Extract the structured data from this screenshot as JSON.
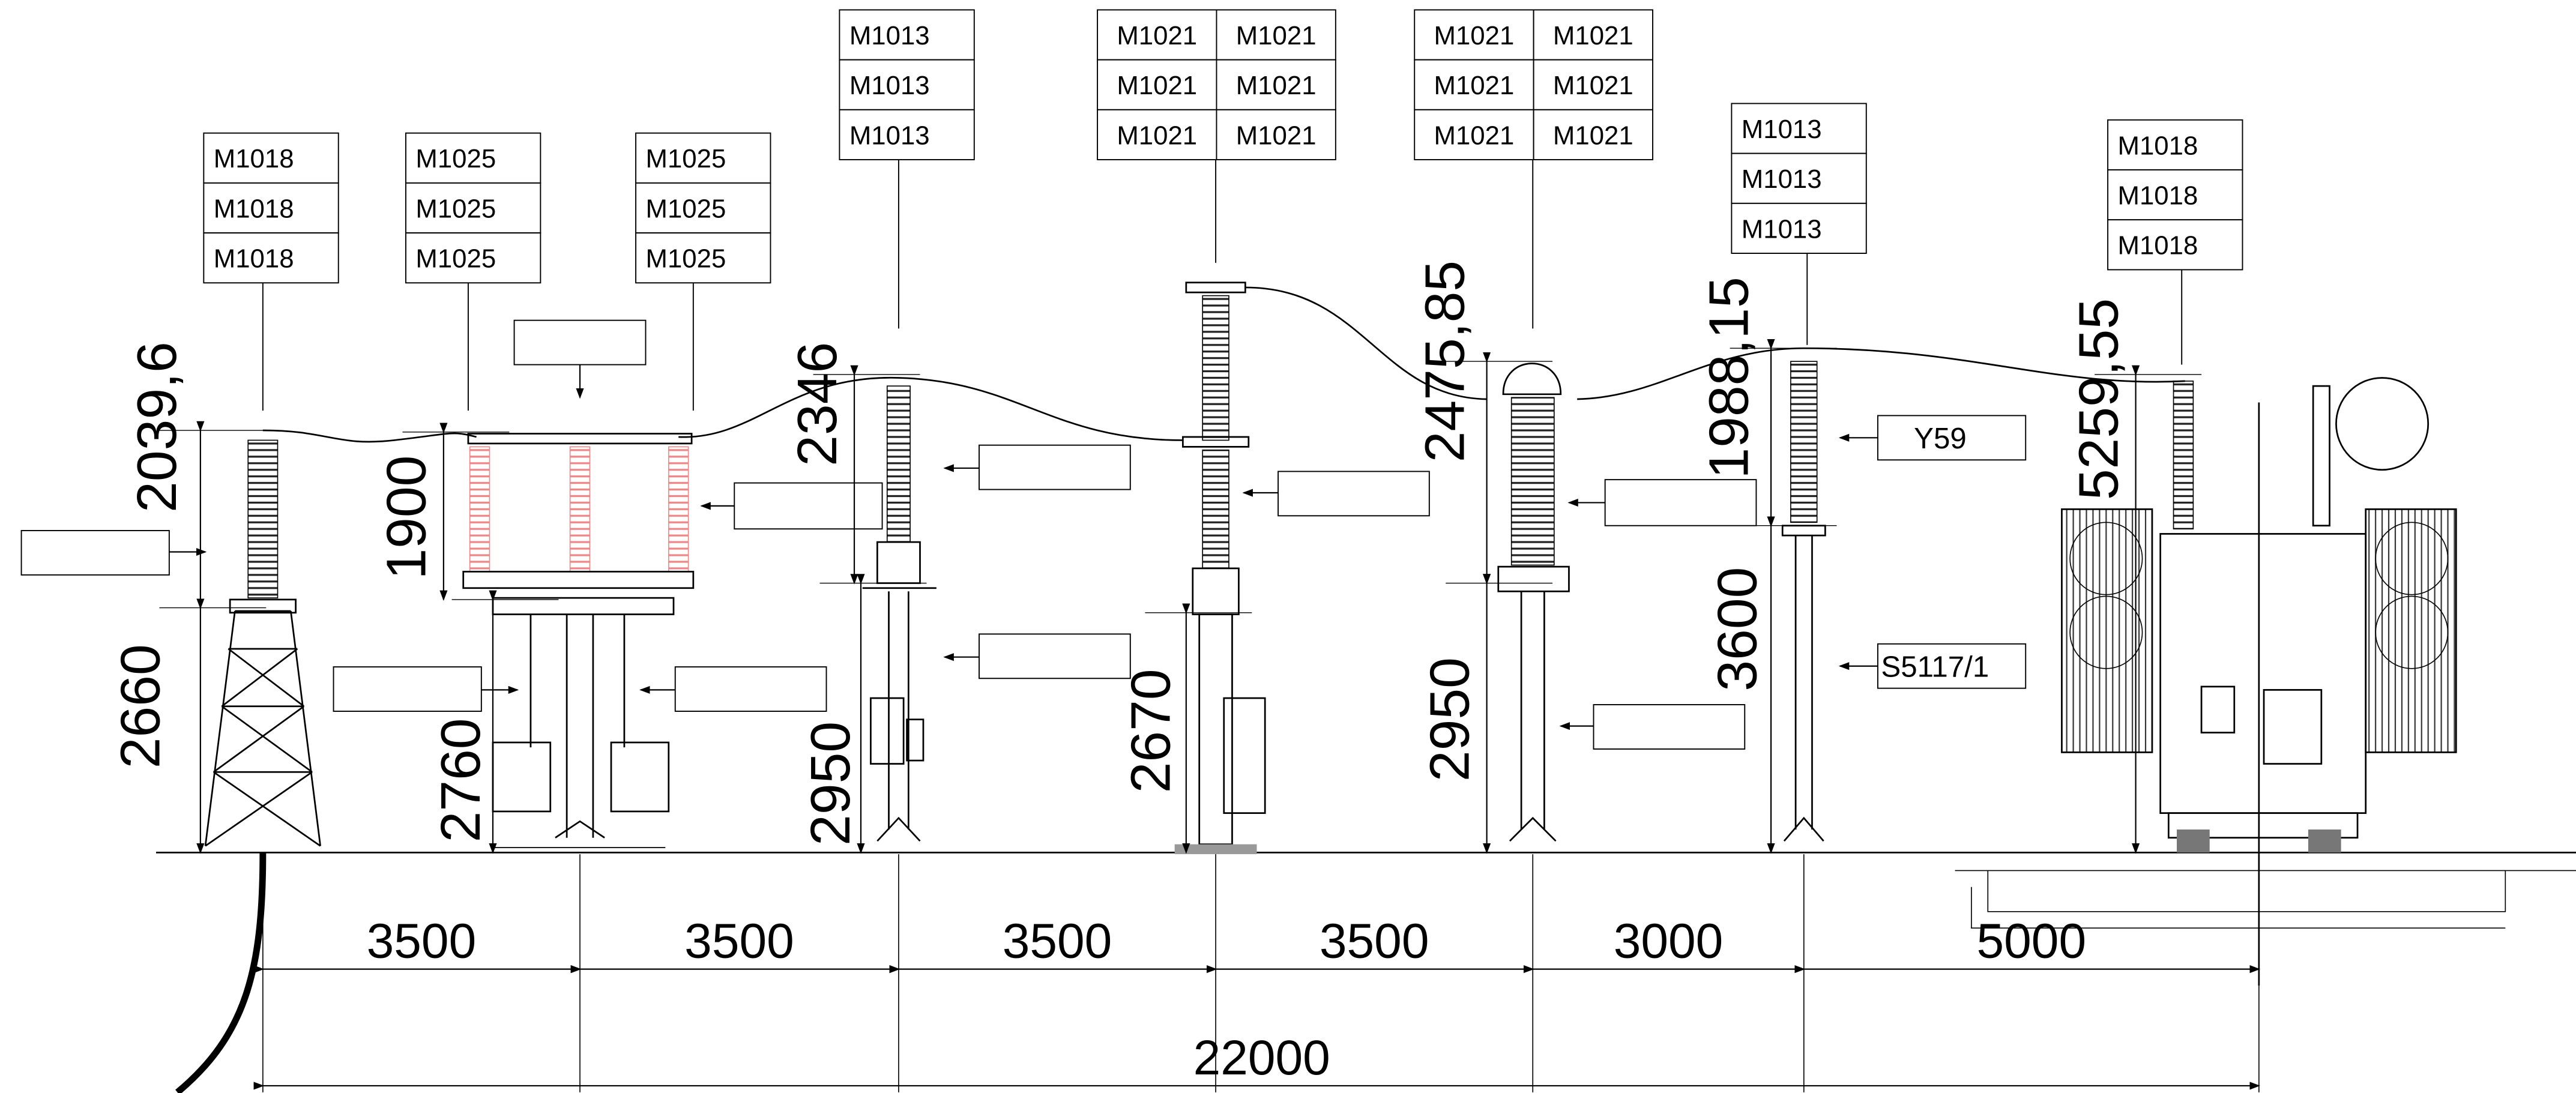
{
  "label_boxes": [
    {
      "cells": [
        "M1018",
        "M1018",
        "M1018"
      ]
    },
    {
      "cells": [
        "M1025",
        "M1025",
        "M1025"
      ]
    },
    {
      "cells": [
        "M1025",
        "M1025",
        "M1025"
      ]
    },
    {
      "cells": [
        "M1013",
        "M1013",
        "M1013"
      ]
    },
    {
      "cells": [
        "M1021",
        "M1021",
        "M1021",
        "M1021",
        "M1021",
        "M1021"
      ]
    },
    {
      "cells": [
        "M1021",
        "M1021",
        "M1021",
        "M1021",
        "M1021",
        "M1021"
      ]
    },
    {
      "cells": [
        "M1013",
        "M1013",
        "M1013"
      ]
    },
    {
      "cells": [
        "M1018",
        "M1018",
        "M1018"
      ]
    }
  ],
  "vertical_dimensions": [
    "2039,6",
    "2660",
    "1900",
    "2760",
    "2346",
    "2950",
    "2670",
    "2475,85",
    "2950",
    "1988,15",
    "3600",
    "5259,55"
  ],
  "horizontal_dimensions": [
    "3500",
    "3500",
    "3500",
    "3500",
    "3000",
    "5000"
  ],
  "overall_dimension": "22000",
  "tags": [
    "Y59",
    "S5117/1"
  ]
}
